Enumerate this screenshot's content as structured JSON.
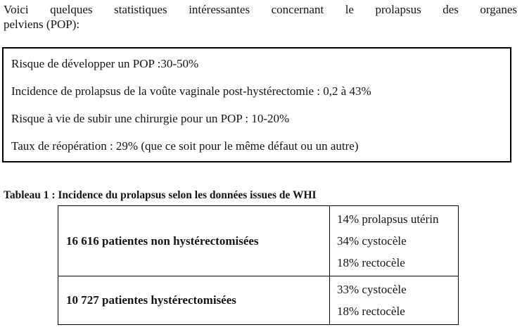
{
  "intro": {
    "line1": "Voici quelques statistiques intéressantes concernant le prolapsus des organes",
    "line2": "pelviens (POP):"
  },
  "stats_box": {
    "items": [
      "Risque de développer un POP :30-50%",
      "Incidence de prolapsus de la voûte vaginale post-hystérectomie : 0,2 à 43%",
      "Risque à vie de subir une chirurgie pour un POP : 10-20%",
      "Taux de réopération : 29% (que ce soit pour le même défaut ou un autre)"
    ]
  },
  "table": {
    "caption": "Tableau 1 : Incidence du prolapsus selon les données issues de WHI",
    "rows": [
      {
        "group": "16 616 patientes non hystérectomisées",
        "values": [
          "14% prolapsus utérin",
          "34% cystocèle",
          "18% rectocèle"
        ]
      },
      {
        "group": "10 727 patientes hystérectomisées",
        "values": [
          "33% cystocèle",
          "18% rectocèle"
        ]
      }
    ]
  },
  "colors": {
    "background": "#ffffff",
    "text": "#141414",
    "border": "#000000"
  }
}
